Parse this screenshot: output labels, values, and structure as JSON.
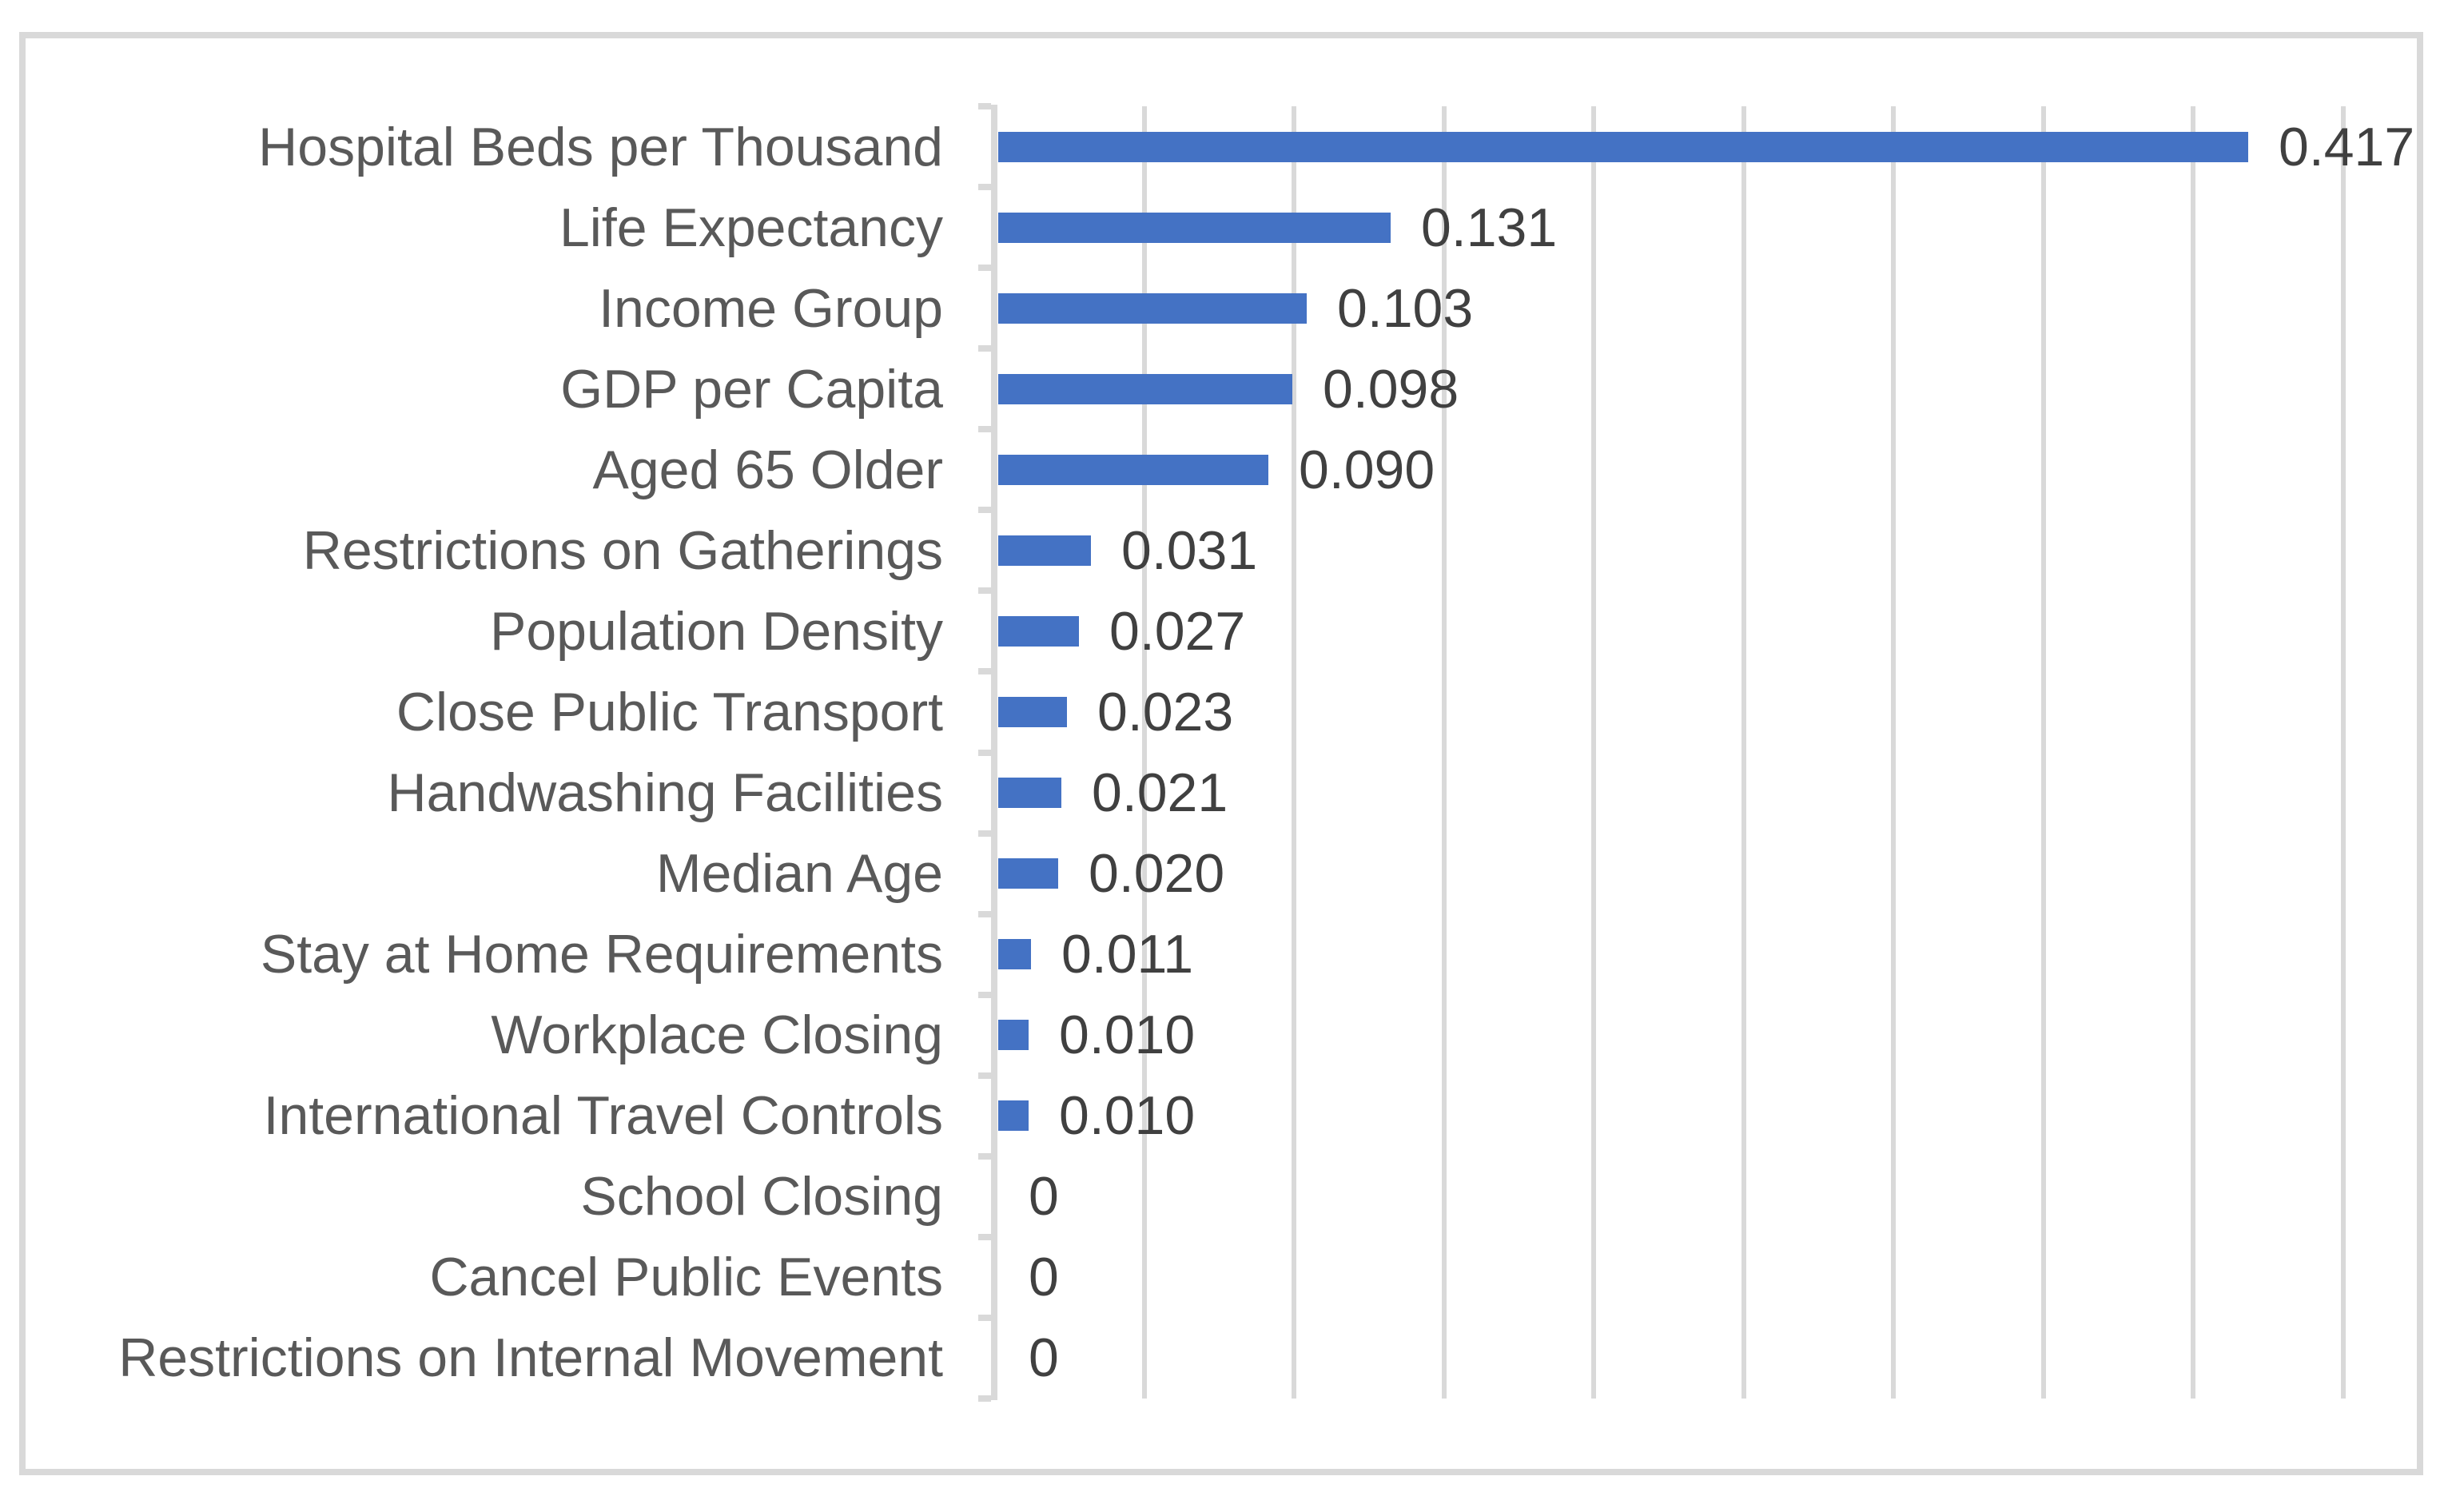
{
  "chart_data": {
    "type": "bar",
    "orientation": "horizontal",
    "title": "",
    "categories": [
      "Hospital Beds per Thousand",
      "Life Expectancy",
      "Income Group",
      "GDP per Capita",
      "Aged 65 Older",
      "Restrictions on Gatherings",
      "Population Density",
      "Close Public Transport",
      "Handwashing Facilities",
      "Median Age",
      "Stay at Home Requirements",
      "Workplace Closing",
      "International Travel Controls",
      "School Closing",
      "Cancel Public Events",
      "Restrictions on Internal Movement"
    ],
    "values": [
      0.417,
      0.131,
      0.103,
      0.098,
      0.09,
      0.031,
      0.027,
      0.023,
      0.021,
      0.02,
      0.011,
      0.01,
      0.01,
      0,
      0,
      0
    ],
    "value_labels": [
      "0.417",
      "0.131",
      "0.103",
      "0.098",
      "0.090",
      "0.031",
      "0.027",
      "0.023",
      "0.021",
      "0.020",
      "0.011",
      "0.010",
      "0.010",
      "0",
      "0",
      "0"
    ],
    "xlabel": "",
    "ylabel": "",
    "xlim": [
      0,
      0.45
    ],
    "gridline_step": 0.05,
    "grid": "vertical-gridlines-on",
    "legend": "none",
    "data_labels": "outside-end",
    "colors": {
      "bar": "#4472C4",
      "gridline": "#d9d9d9",
      "axis_line": "#d9d9d9",
      "chart_border": "#d9d9d9",
      "category_label": "#595959",
      "value_label": "#404040",
      "background": "#ffffff"
    }
  }
}
